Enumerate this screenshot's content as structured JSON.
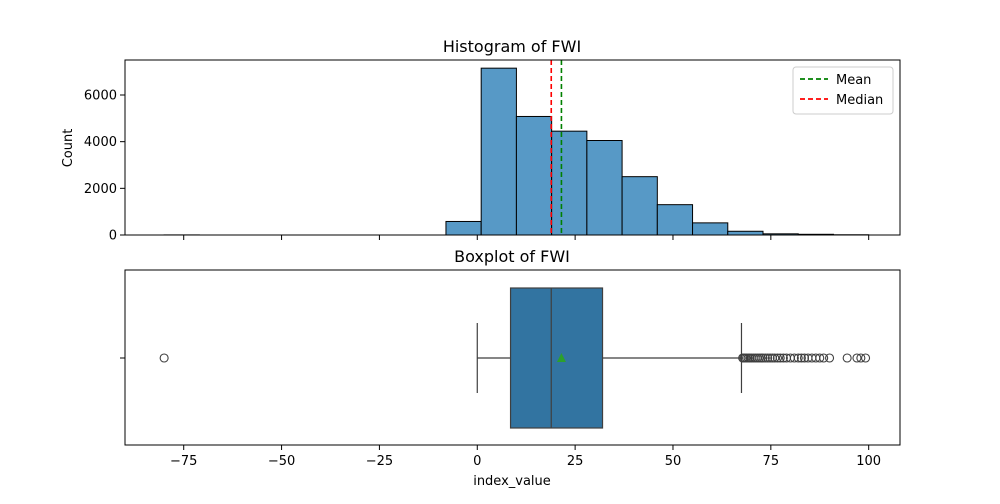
{
  "chart_data": [
    {
      "type": "histogram",
      "title": "Histogram of FWI",
      "xlabel": "",
      "ylabel": "Count",
      "xlim": [
        -90,
        108
      ],
      "ylim": [
        0,
        7500
      ],
      "y_ticks": [
        0,
        2000,
        4000,
        6000
      ],
      "bar_color": "#5799c6",
      "bins": [
        {
          "start": -80,
          "end": -71,
          "count": 4
        },
        {
          "start": -8,
          "end": 1,
          "count": 580
        },
        {
          "start": 1,
          "end": 10,
          "count": 7150
        },
        {
          "start": 10,
          "end": 19,
          "count": 5080
        },
        {
          "start": 19,
          "end": 28,
          "count": 4450
        },
        {
          "start": 28,
          "end": 37,
          "count": 4050
        },
        {
          "start": 37,
          "end": 46,
          "count": 2500
        },
        {
          "start": 46,
          "end": 55,
          "count": 1300
        },
        {
          "start": 55,
          "end": 64,
          "count": 520
        },
        {
          "start": 64,
          "end": 73,
          "count": 160
        },
        {
          "start": 73,
          "end": 82,
          "count": 50
        },
        {
          "start": 82,
          "end": 91,
          "count": 30
        },
        {
          "start": 91,
          "end": 100,
          "count": 10
        }
      ],
      "mean": 21.5,
      "median": 18.9,
      "legend": [
        {
          "label": "Mean",
          "color": "#008000"
        },
        {
          "label": "Median",
          "color": "#ff0000"
        }
      ],
      "legend_position": "top-right"
    },
    {
      "type": "boxplot",
      "title": "Boxplot of FWI",
      "xlabel": "index_value",
      "ylabel": "",
      "xlim": [
        -90,
        108
      ],
      "x_ticks": [
        -75,
        -50,
        -25,
        0,
        25,
        50,
        75,
        100
      ],
      "x_tick_labels": [
        "−75",
        "−50",
        "−25",
        "0",
        "25",
        "50",
        "75",
        "100"
      ],
      "box_color": "#3274a1",
      "whisker_low": 0,
      "q1": 8.5,
      "median": 18.9,
      "q3": 32,
      "whisker_high": 67.5,
      "mean": 21.5,
      "mean_marker_color": "#2ca02c",
      "outliers": [
        -80,
        67.8,
        68.1,
        68.4,
        68.8,
        69.2,
        69.6,
        70.0,
        70.5,
        71.0,
        71.5,
        72.0,
        72.5,
        73.0,
        73.6,
        74.2,
        74.8,
        75.4,
        76.0,
        76.7,
        77.4,
        78.2,
        79.0,
        80.0,
        81.0,
        82.0,
        82.8,
        83.6,
        84.5,
        85.5,
        86.5,
        87.5,
        88.5,
        90.0,
        94.5,
        97.0,
        98.0,
        99.2
      ]
    }
  ]
}
